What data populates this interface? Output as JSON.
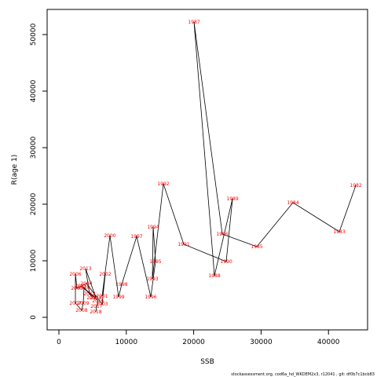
{
  "chart_data": {
    "type": "line",
    "xlabel": "SSB",
    "ylabel": "R(age 1)",
    "footer": "stockassessment.org, cod6a_hd_WKDEM2x3, r12041 , git: df0b7c1bcb83",
    "x": [
      44056,
      41608,
      34732,
      29370,
      24242,
      20047,
      23077,
      25758,
      24825,
      18531,
      15501,
      13870,
      13986,
      14336,
      13636,
      11538,
      9324,
      8858,
      7576,
      6410,
      6876,
      6410,
      4079,
      2681,
      2448,
      2448,
      3380,
      3613,
      3730,
      5012,
      4545,
      3963,
      5478,
      3263,
      5828,
      5594,
      5478
    ],
    "series": [
      {
        "name": "R(age 1)",
        "color": "#000000",
        "label_color": "#ff0000",
        "values": [
          23333,
          15139,
          20278,
          12500,
          14722,
          52222,
          7361,
          20972,
          9861,
          12917,
          23611,
          6806,
          15972,
          9861,
          3611,
          14306,
          5833,
          3611,
          14444,
          3750,
          7639,
          2361,
          5972,
          5139,
          7639,
          2500,
          1250,
          2500,
          5278,
          3472,
          4167,
          8611,
          3472,
          5556,
          2917,
          1944,
          972
        ],
        "point_labels": [
          "1982",
          "1983",
          "1984",
          "1985",
          "1986",
          "1987",
          "1988",
          "1989",
          "1990",
          "1991",
          "1992",
          "1993",
          "1994",
          "1995",
          "1996",
          "1997",
          "1998",
          "1999",
          "2000",
          "2001",
          "2002",
          "2003",
          "2004",
          "2005",
          "2006",
          "2007",
          "2008",
          "2009",
          "2010",
          "2011",
          "2012",
          "2013",
          "2014",
          "2015",
          "2016",
          "2017",
          "2018"
        ]
      }
    ],
    "xlim": [
      -1748,
      45800
    ],
    "ylim": [
      -2222,
      54444
    ],
    "xticks": [
      0,
      10000,
      20000,
      30000,
      40000
    ],
    "yticks": [
      0,
      10000,
      20000,
      30000,
      40000,
      50000
    ]
  }
}
